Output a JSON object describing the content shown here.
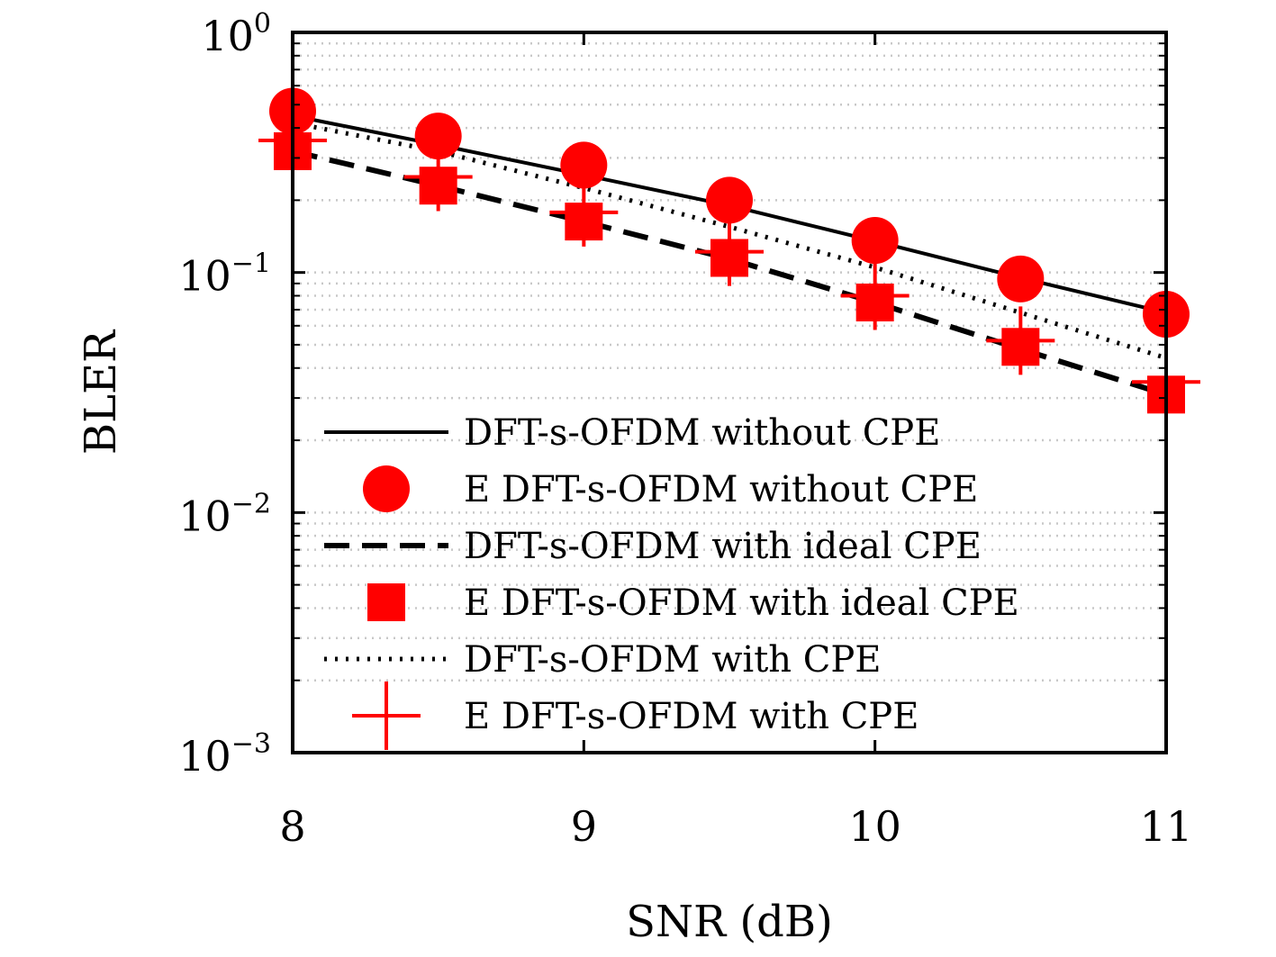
{
  "chart_data": {
    "type": "line",
    "xlabel": "SNR (dB)",
    "ylabel": "BLER",
    "xlim": [
      8,
      11
    ],
    "ylim": [
      0.001,
      1
    ],
    "y_scale": "log",
    "grid": "y-major-and-minor-dotted",
    "legend_position": "bottom-left",
    "x_ticks": [
      "8",
      "9",
      "10",
      "11"
    ],
    "y_ticks": [
      {
        "value": 1,
        "base": "10",
        "exp": "0"
      },
      {
        "value": 0.1,
        "base": "10",
        "exp": "−1"
      },
      {
        "value": 0.01,
        "base": "10",
        "exp": "−2"
      },
      {
        "value": 0.001,
        "base": "10",
        "exp": "−3"
      }
    ],
    "x": [
      8,
      8.5,
      9,
      9.5,
      10,
      10.5,
      11
    ],
    "series": [
      {
        "name": "DFT-s-OFDM without CPE",
        "style": "solid",
        "color": "#000000",
        "values": [
          0.45,
          0.34,
          0.255,
          0.19,
          0.135,
          0.095,
          0.068
        ]
      },
      {
        "name": "E DFT-s-OFDM without CPE",
        "style": "circle",
        "color": "#ff0000",
        "values": [
          0.47,
          0.37,
          0.28,
          0.2,
          0.136,
          0.094,
          0.067
        ]
      },
      {
        "name": "DFT-s-OFDM with ideal CPE",
        "style": "dashed",
        "color": "#000000",
        "values": [
          0.32,
          0.23,
          0.163,
          0.114,
          0.075,
          0.048,
          0.031
        ]
      },
      {
        "name": "E DFT-s-OFDM with ideal CPE",
        "style": "square",
        "color": "#ff0000",
        "values": [
          0.32,
          0.23,
          0.163,
          0.115,
          0.075,
          0.049,
          0.031
        ]
      },
      {
        "name": "DFT-s-OFDM with CPE",
        "style": "dotted",
        "color": "#000000",
        "values": [
          0.42,
          0.32,
          0.225,
          0.155,
          0.105,
          0.068,
          0.044
        ]
      },
      {
        "name": "E DFT-s-OFDM with CPE",
        "style": "plus",
        "color": "#ff0000",
        "values": [
          0.355,
          0.25,
          0.178,
          0.122,
          0.08,
          0.052,
          0.035
        ]
      }
    ]
  }
}
